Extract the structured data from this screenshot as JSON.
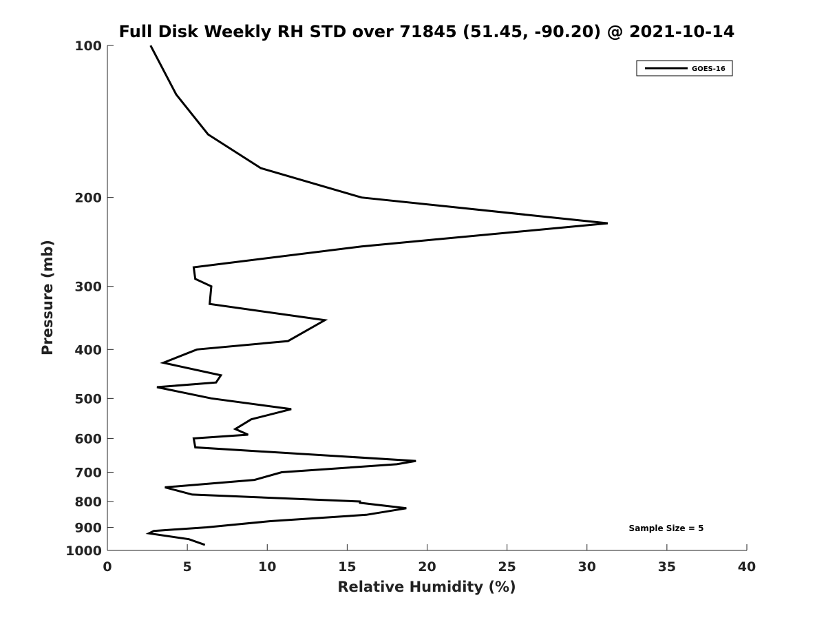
{
  "chart_data": {
    "type": "line",
    "title": "Full Disk Weekly RH STD over 71845 (51.45, -90.20) @ 2021-10-14",
    "xlabel": "Relative Humidity (%)",
    "ylabel": "Pressure (mb)",
    "xlim": [
      0,
      40
    ],
    "ylim": [
      1000,
      100
    ],
    "yscale": "log",
    "xticks": [
      0,
      5,
      10,
      15,
      20,
      25,
      30,
      35,
      40
    ],
    "yticks": [
      100,
      200,
      300,
      400,
      500,
      600,
      700,
      800,
      900,
      1000
    ],
    "grid": false,
    "legend_position": "top-right",
    "annotation": "Sample Size = 5",
    "line_color": "#000000",
    "series": [
      {
        "name": "GOES-16",
        "points": [
          [
            2.7,
            100
          ],
          [
            4.3,
            125
          ],
          [
            6.3,
            150
          ],
          [
            9.6,
            175
          ],
          [
            15.9,
            200
          ],
          [
            31.3,
            225
          ],
          [
            15.9,
            250
          ],
          [
            5.4,
            275
          ],
          [
            5.5,
            290
          ],
          [
            6.5,
            300
          ],
          [
            6.4,
            325
          ],
          [
            13.6,
            350
          ],
          [
            11.3,
            385
          ],
          [
            5.6,
            400
          ],
          [
            3.5,
            425
          ],
          [
            7.1,
            450
          ],
          [
            6.8,
            465
          ],
          [
            3.1,
            475
          ],
          [
            6.5,
            500
          ],
          [
            11.5,
            525
          ],
          [
            9.0,
            550
          ],
          [
            8.0,
            575
          ],
          [
            8.8,
            590
          ],
          [
            5.4,
            600
          ],
          [
            5.5,
            625
          ],
          [
            19.3,
            665
          ],
          [
            18.1,
            675
          ],
          [
            10.9,
            700
          ],
          [
            9.2,
            725
          ],
          [
            3.6,
            750
          ],
          [
            5.3,
            775
          ],
          [
            15.8,
            800
          ],
          [
            15.8,
            805
          ],
          [
            18.7,
            825
          ],
          [
            16.2,
            850
          ],
          [
            10.2,
            875
          ],
          [
            6.2,
            900
          ],
          [
            2.9,
            915
          ],
          [
            2.6,
            925
          ],
          [
            5.1,
            950
          ],
          [
            6.1,
            975
          ]
        ]
      }
    ]
  }
}
